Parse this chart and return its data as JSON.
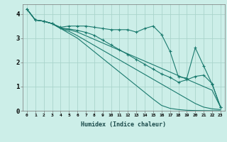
{
  "xlabel": "Humidex (Indice chaleur)",
  "bg_color": "#cceee8",
  "grid_color": "#aad4cc",
  "line_color": "#1a7a6e",
  "xlim_min": -0.5,
  "xlim_max": 23.5,
  "ylim_min": 0,
  "ylim_max": 4.4,
  "yticks": [
    0,
    1,
    2,
    3,
    4
  ],
  "xtick_labels": [
    "0",
    "1",
    "2",
    "3",
    "4",
    "5",
    "6",
    "7",
    "8",
    "9",
    "10",
    "11",
    "12",
    "13",
    "14",
    "15",
    "16",
    "17",
    "18",
    "19",
    "20",
    "21",
    "22",
    "23"
  ],
  "series": [
    {
      "x": [
        0,
        1,
        2,
        3,
        4,
        5,
        6,
        7,
        8,
        9,
        10,
        11,
        12,
        13,
        14,
        15,
        16,
        17,
        18,
        19,
        20,
        21,
        22,
        23
      ],
      "y": [
        4.2,
        3.75,
        3.7,
        3.6,
        3.45,
        3.5,
        3.5,
        3.5,
        3.45,
        3.4,
        3.35,
        3.35,
        3.35,
        3.25,
        3.4,
        3.5,
        3.15,
        2.45,
        1.4,
        1.35,
        2.6,
        1.85,
        1.1,
        0.15
      ],
      "marker": "+"
    },
    {
      "x": [
        0,
        1,
        2,
        3,
        4,
        5,
        6,
        7,
        8,
        9,
        10,
        11,
        12,
        13,
        14,
        15,
        16,
        17,
        18,
        19,
        20,
        21,
        22,
        23
      ],
      "y": [
        4.2,
        3.75,
        3.7,
        3.6,
        3.4,
        3.35,
        3.25,
        3.1,
        2.95,
        2.8,
        2.65,
        2.5,
        2.35,
        2.2,
        2.05,
        1.9,
        1.75,
        1.6,
        1.45,
        1.3,
        1.15,
        1.0,
        0.85,
        0.15
      ],
      "marker": null
    },
    {
      "x": [
        0,
        1,
        2,
        3,
        4,
        5,
        6,
        7,
        8,
        9,
        10,
        11,
        12,
        13,
        14,
        15,
        16,
        17,
        18,
        19,
        20,
        21,
        22,
        23
      ],
      "y": [
        4.2,
        3.75,
        3.7,
        3.6,
        3.4,
        3.28,
        3.1,
        2.9,
        2.7,
        2.5,
        2.3,
        2.1,
        1.9,
        1.7,
        1.5,
        1.3,
        1.1,
        0.9,
        0.7,
        0.5,
        0.3,
        0.15,
        0.08,
        0.05
      ],
      "marker": null
    },
    {
      "x": [
        0,
        1,
        2,
        3,
        4,
        5,
        6,
        7,
        8,
        9,
        10,
        11,
        12,
        13,
        14,
        15,
        16,
        17,
        18,
        19,
        20,
        21,
        22,
        23
      ],
      "y": [
        4.2,
        3.75,
        3.7,
        3.6,
        3.4,
        3.2,
        3.0,
        2.72,
        2.44,
        2.16,
        1.88,
        1.6,
        1.32,
        1.04,
        0.76,
        0.48,
        0.22,
        0.1,
        0.05,
        0.02,
        0.01,
        0.005,
        0.002,
        0.001
      ],
      "marker": null
    },
    {
      "x": [
        0,
        1,
        2,
        3,
        4,
        5,
        6,
        7,
        8,
        9,
        10,
        11,
        12,
        13,
        14,
        15,
        16,
        17,
        18,
        19,
        20,
        21,
        22,
        23
      ],
      "y": [
        4.2,
        3.75,
        3.7,
        3.6,
        3.42,
        3.38,
        3.32,
        3.24,
        3.12,
        2.92,
        2.72,
        2.52,
        2.32,
        2.12,
        1.92,
        1.72,
        1.52,
        1.38,
        1.18,
        1.28,
        1.42,
        1.47,
        1.12,
        0.15
      ],
      "marker": "+"
    }
  ]
}
